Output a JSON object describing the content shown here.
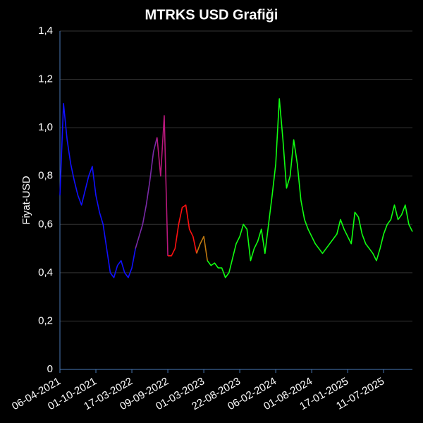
{
  "chart_data": {
    "type": "line",
    "title": "MTRKS USD Grafiği",
    "y_label": "Fiyat-USD",
    "categories": [
      "06-04-2021",
      null,
      null,
      null,
      null,
      null,
      null,
      null,
      null,
      null,
      "01-10-2021",
      null,
      null,
      null,
      null,
      null,
      null,
      null,
      null,
      null,
      "17-03-2022",
      null,
      null,
      null,
      null,
      null,
      null,
      null,
      null,
      null,
      "09-09-2022",
      null,
      null,
      null,
      null,
      null,
      null,
      null,
      null,
      null,
      "01-03-2023",
      null,
      null,
      null,
      null,
      null,
      null,
      null,
      null,
      null,
      "22-08-2023",
      null,
      null,
      null,
      null,
      null,
      null,
      null,
      null,
      null,
      "06-02-2024",
      null,
      null,
      null,
      null,
      null,
      null,
      null,
      null,
      null,
      "01-08-2024",
      null,
      null,
      null,
      null,
      null,
      null,
      null,
      null,
      null,
      "17-01-2025",
      null,
      null,
      null,
      null,
      null,
      null,
      null,
      null,
      null,
      "11-07-2025",
      null,
      null,
      null,
      null,
      null,
      null,
      null,
      null
    ],
    "ylim": [
      0,
      1.4
    ],
    "yticks": [
      0,
      {
        "value": 0.2,
        "label": "0,2"
      },
      {
        "value": 0.4,
        "label": "0,4"
      },
      {
        "value": 0.6,
        "label": "0,6"
      },
      {
        "value": 0.8,
        "label": "0,8"
      },
      {
        "value": 1.0,
        "label": "1,0"
      },
      {
        "value": 1.2,
        "label": "1,2"
      },
      {
        "value": 1.4,
        "label": "1,4"
      }
    ],
    "grid": true,
    "series": [
      {
        "color": "#1010ff",
        "values": [
          0.72,
          1.1,
          0.95,
          0.85,
          0.78,
          0.72,
          0.68,
          0.74,
          0.8,
          0.84,
          0.72,
          0.65,
          0.6,
          0.5,
          0.4,
          0.38,
          0.43,
          0.45,
          0.4,
          0.38,
          0.42,
          0.5,
          null,
          null,
          null,
          null,
          null,
          null,
          null,
          null,
          null,
          null,
          null,
          null,
          null,
          null,
          null,
          null,
          null,
          null,
          null,
          null,
          null,
          null,
          null,
          null,
          null,
          null,
          null,
          null,
          null,
          null,
          null,
          null,
          null,
          null,
          null,
          null,
          null,
          null,
          null,
          null,
          null,
          null,
          null,
          null,
          null,
          null,
          null,
          null,
          null,
          null,
          null,
          null,
          null,
          null,
          null,
          null,
          null,
          null,
          null,
          null,
          null,
          null,
          null,
          null,
          null,
          null,
          null,
          null,
          null,
          null,
          null,
          null,
          null,
          null,
          null,
          null,
          null
        ]
      },
      {
        "color": "#7a2aa8",
        "values": [
          null,
          null,
          null,
          null,
          null,
          null,
          null,
          null,
          null,
          null,
          null,
          null,
          null,
          null,
          null,
          null,
          null,
          null,
          null,
          null,
          null,
          0.5,
          0.55,
          0.6,
          0.68,
          0.78,
          0.9,
          0.96,
          null,
          null,
          null,
          null,
          null,
          null,
          null,
          null,
          null,
          null,
          null,
          null,
          null,
          null,
          null,
          null,
          null,
          null,
          null,
          null,
          null,
          null,
          null,
          null,
          null,
          null,
          null,
          null,
          null,
          null,
          null,
          null,
          null,
          null,
          null,
          null,
          null,
          null,
          null,
          null,
          null,
          null,
          null,
          null,
          null,
          null,
          null,
          null,
          null,
          null,
          null,
          null,
          null,
          null,
          null,
          null,
          null,
          null,
          null,
          null,
          null,
          null,
          null,
          null,
          null,
          null,
          null,
          null,
          null,
          null,
          null
        ]
      },
      {
        "color": "#b8187c",
        "values": [
          null,
          null,
          null,
          null,
          null,
          null,
          null,
          null,
          null,
          null,
          null,
          null,
          null,
          null,
          null,
          null,
          null,
          null,
          null,
          null,
          null,
          null,
          null,
          null,
          null,
          null,
          null,
          0.96,
          0.8,
          1.05,
          0.47,
          null,
          null,
          null,
          null,
          null,
          null,
          null,
          null,
          null,
          null,
          null,
          null,
          null,
          null,
          null,
          null,
          null,
          null,
          null,
          null,
          null,
          null,
          null,
          null,
          null,
          null,
          null,
          null,
          null,
          null,
          null,
          null,
          null,
          null,
          null,
          null,
          null,
          null,
          null,
          null,
          null,
          null,
          null,
          null,
          null,
          null,
          null,
          null,
          null,
          null,
          null,
          null,
          null,
          null,
          null,
          null,
          null,
          null,
          null,
          null,
          null,
          null,
          null,
          null,
          null,
          null,
          null,
          null
        ]
      },
      {
        "color": "#ff1010",
        "values": [
          null,
          null,
          null,
          null,
          null,
          null,
          null,
          null,
          null,
          null,
          null,
          null,
          null,
          null,
          null,
          null,
          null,
          null,
          null,
          null,
          null,
          null,
          null,
          null,
          null,
          null,
          null,
          null,
          null,
          null,
          0.47,
          0.47,
          0.5,
          0.6,
          0.67,
          0.68,
          0.58,
          0.55,
          0.48,
          null,
          null,
          null,
          null,
          null,
          null,
          null,
          null,
          null,
          null,
          null,
          null,
          null,
          null,
          null,
          null,
          null,
          null,
          null,
          null,
          null,
          null,
          null,
          null,
          null,
          null,
          null,
          null,
          null,
          null,
          null,
          null,
          null,
          null,
          null,
          null,
          null,
          null,
          null,
          null,
          null,
          null,
          null,
          null,
          null,
          null,
          null,
          null,
          null,
          null,
          null,
          null,
          null,
          null,
          null,
          null,
          null,
          null,
          null,
          null
        ]
      },
      {
        "color": "#c07a10",
        "values": [
          null,
          null,
          null,
          null,
          null,
          null,
          null,
          null,
          null,
          null,
          null,
          null,
          null,
          null,
          null,
          null,
          null,
          null,
          null,
          null,
          null,
          null,
          null,
          null,
          null,
          null,
          null,
          null,
          null,
          null,
          null,
          null,
          null,
          null,
          null,
          null,
          null,
          null,
          0.48,
          0.52,
          0.55,
          0.45,
          null,
          null,
          null,
          null,
          null,
          null,
          null,
          null,
          null,
          null,
          null,
          null,
          null,
          null,
          null,
          null,
          null,
          null,
          null,
          null,
          null,
          null,
          null,
          null,
          null,
          null,
          null,
          null,
          null,
          null,
          null,
          null,
          null,
          null,
          null,
          null,
          null,
          null,
          null,
          null,
          null,
          null,
          null,
          null,
          null,
          null,
          null,
          null,
          null,
          null,
          null,
          null,
          null,
          null,
          null,
          null,
          null
        ]
      },
      {
        "color": "#10ff10",
        "values": [
          null,
          null,
          null,
          null,
          null,
          null,
          null,
          null,
          null,
          null,
          null,
          null,
          null,
          null,
          null,
          null,
          null,
          null,
          null,
          null,
          null,
          null,
          null,
          null,
          null,
          null,
          null,
          null,
          null,
          null,
          null,
          null,
          null,
          null,
          null,
          null,
          null,
          null,
          null,
          null,
          null,
          0.45,
          0.43,
          0.44,
          0.42,
          0.42,
          0.38,
          0.4,
          0.46,
          0.52,
          0.55,
          0.6,
          0.58,
          0.45,
          0.5,
          0.53,
          0.58,
          0.48,
          0.6,
          0.72,
          0.85,
          1.12,
          0.95,
          0.75,
          0.8,
          0.95,
          0.85,
          0.7,
          0.62,
          0.58,
          0.55,
          0.52,
          0.5,
          0.48,
          0.5,
          0.52,
          0.54,
          0.56,
          0.62,
          0.58,
          0.55,
          0.52,
          0.65,
          0.63,
          0.56,
          0.52,
          0.5,
          0.48,
          0.45,
          0.5,
          0.56,
          0.6,
          0.62,
          0.68,
          0.62,
          0.64,
          0.68,
          0.6,
          0.57
        ]
      }
    ]
  }
}
